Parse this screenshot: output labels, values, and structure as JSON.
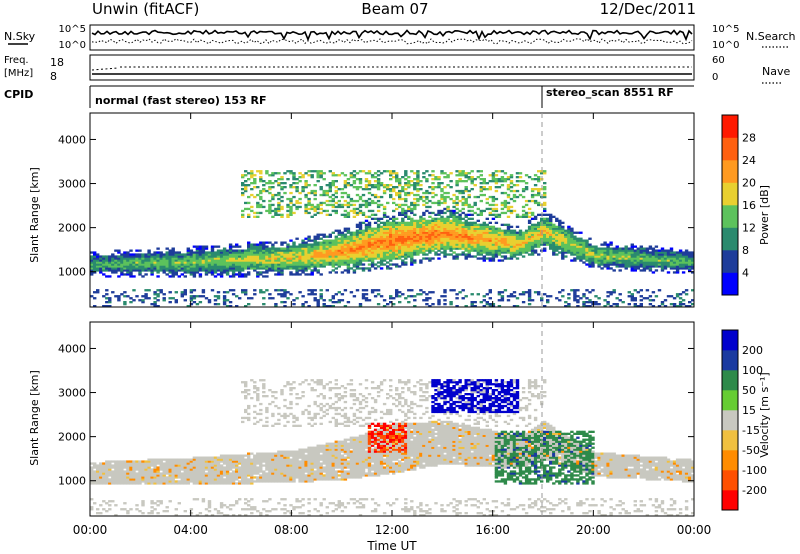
{
  "header": {
    "station": "Unwin (fitACF)",
    "beam": "Beam 07",
    "date": "12/Dec/2011"
  },
  "chart_data": [
    {
      "type": "line",
      "panel": "sky-search-noise",
      "left_label": "N.Sky",
      "right_label": "N.Search",
      "left_ticks": [
        "10^5",
        "10^0"
      ],
      "right_ticks": [
        "10^5",
        "10^0"
      ],
      "series": [
        {
          "name": "N.Sky",
          "style": "solid",
          "level": 0.7
        },
        {
          "name": "N.Search",
          "style": "dotted",
          "level": 0.35
        }
      ]
    },
    {
      "type": "line",
      "panel": "frequency-nave",
      "left_label_lines": [
        "Freq.",
        "[MHz]"
      ],
      "right_label": "Nave",
      "left_ticks": [
        "18",
        "8"
      ],
      "right_ticks": [
        "60",
        "0"
      ],
      "series": [
        {
          "name": "Freq.",
          "style": "solid"
        },
        {
          "name": "Nave",
          "style": "dotted"
        }
      ]
    },
    {
      "type": "table",
      "panel": "cpid",
      "label": "CPID",
      "segments": [
        {
          "start_hour": 0,
          "end_hour": 18,
          "text": "normal (fast stereo) 153 RF"
        },
        {
          "start_hour": 18,
          "end_hour": 24,
          "text": "stereo_scan 8551 RF"
        }
      ]
    },
    {
      "type": "heatmap",
      "panel": "power",
      "ylabel": "Slant Range [km]",
      "ylim": [
        200,
        4600
      ],
      "yticks": [
        1000,
        2000,
        3000,
        4000
      ],
      "colorbar_label": "Power [dB]",
      "colorbar_ticks": [
        "4",
        "8",
        "12",
        "16",
        "20",
        "24",
        "28"
      ],
      "colormap": [
        "#0000ff",
        "#1e3c9a",
        "#2a8a6e",
        "#5cc25c",
        "#e8d030",
        "#ff9a20",
        "#ff6010",
        "#ff1a00"
      ],
      "echo_band": [
        {
          "t": 0,
          "center_km": 1150,
          "halfwidth_km": 180,
          "power_db": 15
        },
        {
          "t": 4,
          "center_km": 1200,
          "halfwidth_km": 220,
          "power_db": 17
        },
        {
          "t": 8,
          "center_km": 1300,
          "halfwidth_km": 260,
          "power_db": 21
        },
        {
          "t": 10,
          "center_km": 1450,
          "halfwidth_km": 320,
          "power_db": 25
        },
        {
          "t": 12,
          "center_km": 1700,
          "halfwidth_km": 400,
          "power_db": 28
        },
        {
          "t": 14,
          "center_km": 1850,
          "halfwidth_km": 350,
          "power_db": 27
        },
        {
          "t": 16,
          "center_km": 1700,
          "halfwidth_km": 300,
          "power_db": 24
        },
        {
          "t": 17,
          "center_km": 1600,
          "halfwidth_km": 250,
          "power_db": 22
        },
        {
          "t": 18,
          "center_km": 1900,
          "halfwidth_km": 300,
          "power_db": 22
        },
        {
          "t": 20,
          "center_km": 1350,
          "halfwidth_km": 200,
          "power_db": 18
        },
        {
          "t": 24,
          "center_km": 1200,
          "halfwidth_km": 180,
          "power_db": 15
        }
      ],
      "upper_scatter": {
        "t_range": [
          6,
          18
        ],
        "km_range": [
          2200,
          3300
        ],
        "power_db": 18
      }
    },
    {
      "type": "heatmap",
      "panel": "velocity",
      "xlabel": "Time UT",
      "ylabel": "Slant Range [km]",
      "ylim": [
        200,
        4600
      ],
      "yticks": [
        1000,
        2000,
        3000,
        4000
      ],
      "xticks": [
        "00:00",
        "04:00",
        "08:00",
        "12:00",
        "16:00",
        "20:00",
        "00:00"
      ],
      "xlim_hours": [
        0,
        24
      ],
      "colorbar_label": "Velocity [m s⁻¹]",
      "colorbar_ticks": [
        "200",
        "100",
        "50",
        "15",
        "-15",
        "-50",
        "-100",
        "-200"
      ],
      "colormap": [
        "#0000cc",
        "#1a3aa0",
        "#2e8a4a",
        "#66cc33",
        "#c8c8c0",
        "#f0c040",
        "#ff8c00",
        "#ff5000",
        "#ff0000"
      ],
      "features": [
        {
          "name": "ground scatter",
          "t_range": [
            0,
            24
          ],
          "km_range": [
            700,
            1900
          ],
          "velocity": 0
        },
        {
          "name": "blue patch",
          "t_range": [
            13.5,
            17
          ],
          "km_range": [
            2500,
            3300
          ],
          "velocity": 200
        },
        {
          "name": "green patch",
          "t_range": [
            16,
            20
          ],
          "km_range": [
            900,
            2100
          ],
          "velocity": 60
        },
        {
          "name": "red-orange patch",
          "t_range": [
            11,
            12.5
          ],
          "km_range": [
            1600,
            2300
          ],
          "velocity": -150
        }
      ]
    }
  ]
}
